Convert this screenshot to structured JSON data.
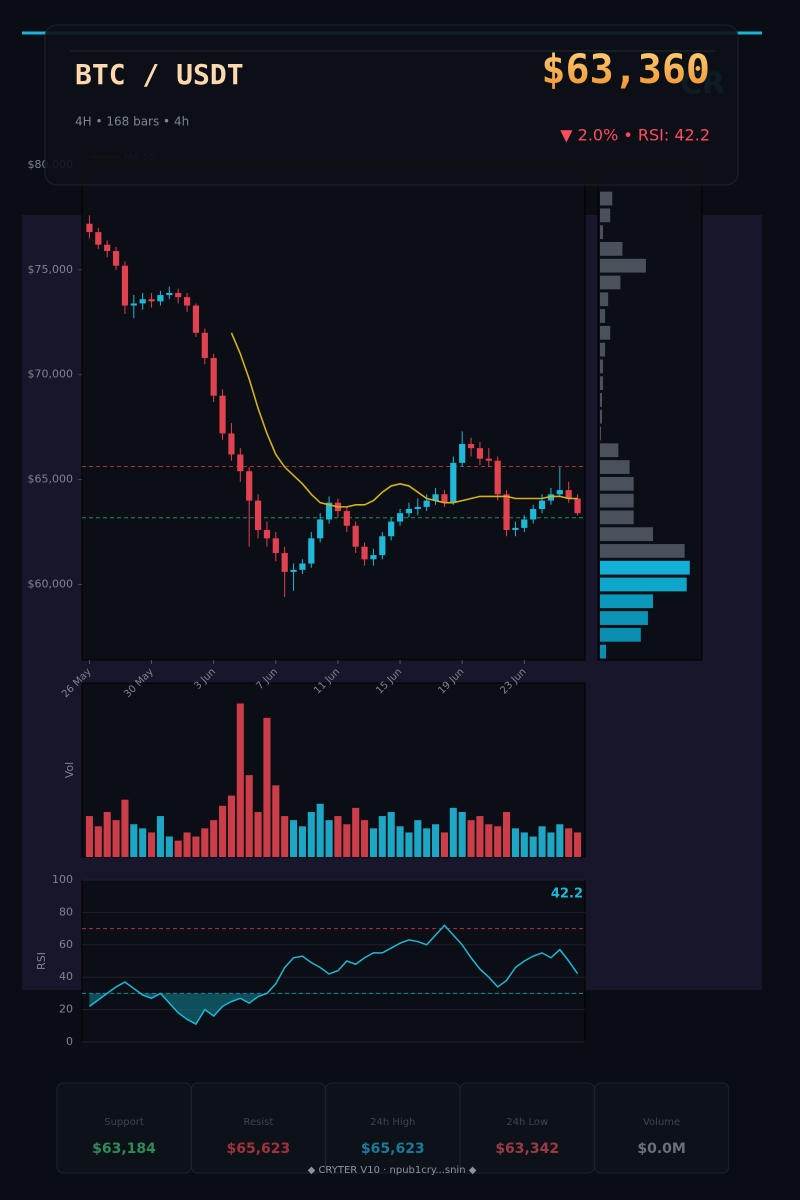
{
  "header": {
    "title": "BTC / USDT",
    "price": "$63,360",
    "meta": "4H  •  168 bars  •  4h",
    "change": "▼ 2.0%  •  RSI: 42.2",
    "watermark": "CR"
  },
  "chart_data": [
    {
      "type": "candlestick",
      "up_color": "#1fb8d8",
      "down_color": "#e0424f",
      "candles": [
        [
          77200,
          77600,
          76500,
          76800
        ],
        [
          76800,
          77000,
          76000,
          76200
        ],
        [
          76200,
          76400,
          75600,
          75900
        ],
        [
          75900,
          76100,
          75000,
          75200
        ],
        [
          75200,
          75400,
          72900,
          73300
        ],
        [
          73300,
          73800,
          72700,
          73400
        ],
        [
          73400,
          73900,
          73100,
          73600
        ],
        [
          73600,
          73900,
          73200,
          73500
        ],
        [
          73500,
          74000,
          73300,
          73800
        ],
        [
          73800,
          74200,
          73600,
          73900
        ],
        [
          73900,
          74100,
          73400,
          73700
        ],
        [
          73700,
          73900,
          73000,
          73300
        ],
        [
          73300,
          73400,
          71800,
          72000
        ],
        [
          72000,
          72200,
          70500,
          70800
        ],
        [
          70800,
          71000,
          68700,
          69000
        ],
        [
          69000,
          69300,
          66900,
          67200
        ],
        [
          67200,
          67700,
          65900,
          66200
        ],
        [
          66200,
          66500,
          64900,
          65400
        ],
        [
          65400,
          65600,
          61800,
          64000
        ],
        [
          64000,
          64300,
          62200,
          62600
        ],
        [
          62600,
          63000,
          61800,
          62200
        ],
        [
          62200,
          62500,
          61100,
          61500
        ],
        [
          61500,
          61800,
          59400,
          60600
        ],
        [
          60600,
          61000,
          59700,
          60700
        ],
        [
          60700,
          61200,
          60500,
          61000
        ],
        [
          61000,
          62500,
          60800,
          62200
        ],
        [
          62200,
          63400,
          62000,
          63100
        ],
        [
          63100,
          64200,
          62900,
          63900
        ],
        [
          63900,
          64100,
          63200,
          63500
        ],
        [
          63500,
          63700,
          62500,
          62800
        ],
        [
          62800,
          63000,
          61500,
          61800
        ],
        [
          61800,
          62000,
          60900,
          61200
        ],
        [
          61200,
          61700,
          60900,
          61400
        ],
        [
          61400,
          62500,
          61200,
          62300
        ],
        [
          62300,
          63200,
          62100,
          63000
        ],
        [
          63000,
          63600,
          62800,
          63400
        ],
        [
          63400,
          63900,
          63200,
          63600
        ],
        [
          63600,
          64100,
          63300,
          63700
        ],
        [
          63700,
          64300,
          63500,
          64000
        ],
        [
          64000,
          64600,
          63800,
          64300
        ],
        [
          64300,
          64500,
          63700,
          63900
        ],
        [
          63900,
          66100,
          63800,
          65800
        ],
        [
          65800,
          67300,
          65600,
          66700
        ],
        [
          66700,
          67000,
          66100,
          66500
        ],
        [
          66500,
          66800,
          65700,
          66000
        ],
        [
          66000,
          66500,
          65600,
          65900
        ],
        [
          65900,
          66100,
          64000,
          64300
        ],
        [
          64300,
          64500,
          62300,
          62600
        ],
        [
          62600,
          63000,
          62300,
          62700
        ],
        [
          62700,
          63300,
          62500,
          63100
        ],
        [
          63100,
          63800,
          62900,
          63600
        ],
        [
          63600,
          64300,
          63400,
          64000
        ],
        [
          64000,
          64600,
          63800,
          64300
        ],
        [
          64300,
          65600,
          64200,
          64500
        ],
        [
          64500,
          64900,
          63900,
          64100
        ],
        [
          64100,
          64300,
          63300,
          63400
        ]
      ],
      "series": [
        {
          "name": "MA 50",
          "color": "#d4b020",
          "values": [
            null,
            null,
            null,
            null,
            null,
            null,
            null,
            null,
            null,
            null,
            null,
            null,
            null,
            null,
            null,
            null,
            72000,
            71000,
            69800,
            68400,
            67200,
            66200,
            65600,
            65200,
            64800,
            64300,
            63900,
            63800,
            63700,
            63700,
            63800,
            63800,
            64000,
            64400,
            64700,
            64800,
            64700,
            64400,
            64100,
            64000,
            63900,
            63900,
            64000,
            64100,
            64200,
            64200,
            64200,
            64200,
            64100,
            64100,
            64100,
            64100,
            64200,
            64200,
            64100,
            64100
          ]
        }
      ],
      "ylim": [
        56400,
        80000
      ],
      "yticks": [
        {
          "value": 60000,
          "label": "$60,000"
        },
        {
          "value": 65000,
          "label": "$65,000"
        },
        {
          "value": 70000,
          "label": "$70,000"
        },
        {
          "value": 75000,
          "label": "$75,000"
        },
        {
          "value": 80000,
          "label": "$80,000"
        }
      ],
      "xticks": [
        {
          "value": 0,
          "label": "26 May"
        },
        {
          "value": 7,
          "label": "30 May"
        },
        {
          "value": 14,
          "label": "3 Jun"
        },
        {
          "value": 21,
          "label": "7 Jun"
        },
        {
          "value": 28,
          "label": "11 Jun"
        },
        {
          "value": 35,
          "label": "15 Jun"
        },
        {
          "value": 42,
          "label": "19 Jun"
        },
        {
          "value": 49,
          "label": "23 Jun"
        }
      ],
      "profile": {
        "bins": [
          56400,
          57200,
          58000,
          58800,
          59600,
          60400,
          61200,
          62000,
          62800,
          63600,
          64400,
          65200,
          66000,
          66800,
          67600,
          68400,
          69200,
          70000,
          70800,
          71600,
          72400,
          73200,
          74000,
          74800,
          75600,
          76400,
          77200,
          78000,
          78800
        ],
        "values": [
          6,
          40,
          47,
          52,
          85,
          88,
          83,
          52,
          33,
          33,
          33,
          29,
          18,
          1,
          2,
          2,
          3,
          3,
          5,
          10,
          5,
          8,
          20,
          45,
          22,
          3,
          10,
          12
        ],
        "colors": [
          "#0a8fb0",
          "#0a8fb0",
          "#0b93b5",
          "#0c98ba",
          "#0fa6cc",
          "#12b0d6",
          "#4a505c",
          "#4a505c",
          "#4a505c",
          "#4a505c",
          "#4a505c",
          "#4a505c",
          "#4a505c",
          "#4a505c",
          "#4a505c",
          "#4a505c",
          "#4a505c",
          "#4a505c",
          "#4a505c",
          "#4a505c",
          "#4a505c",
          "#4a505c",
          "#4a505c",
          "#4a505c",
          "#4a505c",
          "#4a505c",
          "#4a505c",
          "#4a505c"
        ],
        "xlim": [
          0,
          100
        ]
      }
    },
    {
      "type": "bar",
      "y_label": "Vol",
      "ylim": [
        0,
        85
      ],
      "values": [
        20,
        15,
        22,
        18,
        28,
        16,
        14,
        12,
        20,
        10,
        8,
        12,
        10,
        14,
        18,
        25,
        30,
        75,
        40,
        22,
        68,
        35,
        20,
        18,
        15,
        22,
        26,
        18,
        20,
        16,
        24,
        18,
        14,
        20,
        22,
        15,
        12,
        18,
        14,
        16,
        12,
        24,
        22,
        18,
        20,
        16,
        15,
        22,
        14,
        12,
        10,
        15,
        12,
        16,
        14,
        12
      ]
    },
    {
      "type": "line",
      "y_label": "RSI",
      "color": "#1fb8d8",
      "ylim": [
        0,
        100
      ],
      "yticks": [
        0,
        20,
        40,
        60,
        80,
        100
      ],
      "grid": true,
      "levels": [
        {
          "value": 70,
          "color": "#b03040"
        },
        {
          "value": 30,
          "color": "#1a8aa0"
        }
      ],
      "values": [
        22,
        26,
        30,
        34,
        37,
        33,
        29,
        27,
        30,
        24,
        18,
        14,
        11,
        20,
        16,
        22,
        25,
        27,
        24,
        28,
        30,
        36,
        46,
        52,
        53,
        49,
        46,
        42,
        44,
        50,
        48,
        52,
        55,
        55,
        58,
        61,
        63,
        62,
        60,
        66,
        72,
        66,
        60,
        52,
        45,
        40,
        34,
        38,
        46,
        50,
        53,
        55,
        52,
        57,
        50,
        42.2
      ]
    }
  ],
  "cards": [
    {
      "label": "Support",
      "value": 63184,
      "value_label": "$63,184",
      "color": "#2e8b57"
    },
    {
      "label": "Resist",
      "value": 65623,
      "value_label": "$65,623",
      "color": "#a0323c"
    },
    {
      "label": "24h High",
      "value": 65623,
      "value_label": "$65,623",
      "color": "#1a7a9a"
    },
    {
      "label": "24h Low",
      "value": 63342,
      "value_label": "$63,342",
      "color": "#9a3a46"
    },
    {
      "label": "Volume",
      "value": 0,
      "value_label": "$0.0M",
      "color": "#6a7078"
    }
  ],
  "footer": "◆ CRYTER V10 · npub1cry...snin ◆"
}
